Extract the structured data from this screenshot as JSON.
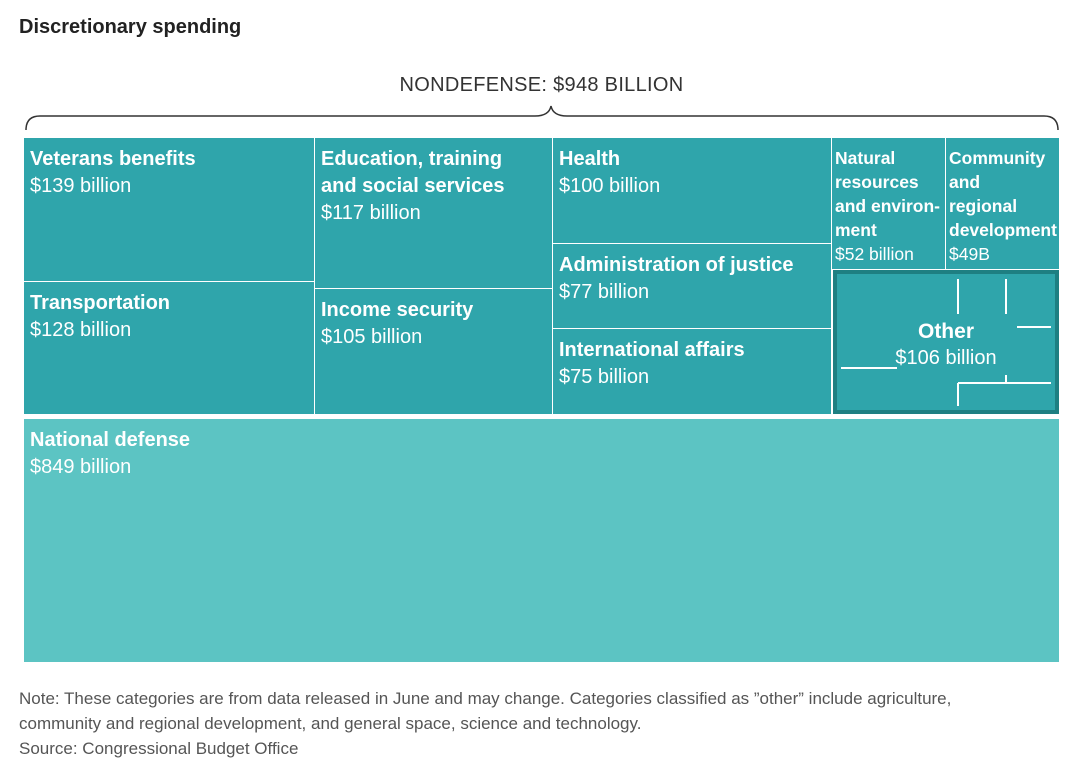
{
  "chart_data": {
    "type": "treemap",
    "title": "Discretionary spending",
    "group_label": "NONDEFENSE: $948 BILLION",
    "categories": [
      {
        "name": "Veterans benefits",
        "value_label": "$139 billion",
        "value": 139,
        "group": "nondefense"
      },
      {
        "name": "Transportation",
        "value_label": "$128 billion",
        "value": 128,
        "group": "nondefense"
      },
      {
        "name": "Education, training and social services",
        "value_label": "$117 billion",
        "value": 117,
        "group": "nondefense"
      },
      {
        "name": "Income security",
        "value_label": "$105 billion",
        "value": 105,
        "group": "nondefense"
      },
      {
        "name": "Health",
        "value_label": "$100 billion",
        "value": 100,
        "group": "nondefense"
      },
      {
        "name": "Administration of justice",
        "value_label": "$77 billion",
        "value": 77,
        "group": "nondefense"
      },
      {
        "name": "International affairs",
        "value_label": "$75 billion",
        "value": 75,
        "group": "nondefense"
      },
      {
        "name": "Natural resources and environ-ment",
        "value_label": "$52 billion",
        "value": 52,
        "group": "nondefense"
      },
      {
        "name": "Community and regional development",
        "value_label": "$49B",
        "value": 49,
        "group": "nondefense"
      },
      {
        "name": "Other",
        "value_label": "$106 billion",
        "value": 106,
        "group": "nondefense"
      },
      {
        "name": "National defense",
        "value_label": "$849 billion",
        "value": 849,
        "group": "defense"
      }
    ],
    "colors": {
      "nondefense": "#2fa5ab",
      "other": "#1e7f82",
      "defense": "#5cc4c3"
    }
  },
  "note": {
    "line1": "Note: These categories are from data released in June and may change. Categories classified as ”other” include agriculture,",
    "line2": "community and regional development, and general space, science and technology.",
    "source": "Source: Congressional Budget Office"
  }
}
